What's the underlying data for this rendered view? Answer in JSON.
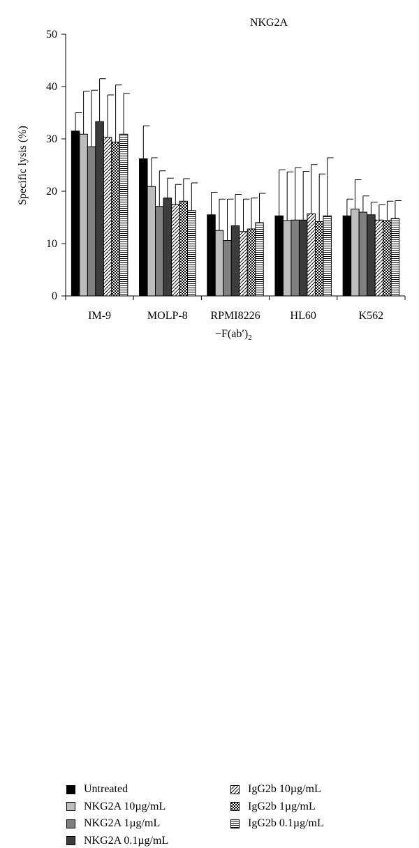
{
  "chart_data": {
    "type": "bar",
    "title": "NKG2A",
    "ylabel": "Specific lysis (%)",
    "xlabel": "",
    "ylim": [
      0,
      50
    ],
    "yticks": [
      "0",
      "10",
      "20",
      "30",
      "40",
      "50"
    ],
    "categories": [
      "IM-9",
      "MOLP-8",
      "RPMI8226",
      "HL60",
      "K562"
    ],
    "category_sublabel": "−F(ab′)",
    "category_sublabel_subscript": "2",
    "legend_position": "bottom",
    "series": [
      {
        "name": "Untreated",
        "pattern": "solid",
        "color": "#000000",
        "values": [
          31.5,
          26.2,
          15.5,
          15.3,
          15.3
        ],
        "errors": [
          3.5,
          6.3,
          4.3,
          8.8,
          3.2
        ]
      },
      {
        "name": "NKG2A 10µg/mL",
        "pattern": "solid",
        "color": "#bdbdbd",
        "values": [
          30.9,
          20.9,
          12.5,
          14.4,
          16.6
        ],
        "errors": [
          8.2,
          5.5,
          6.0,
          9.3,
          5.6
        ]
      },
      {
        "name": "NKG2A 1µg/mL",
        "pattern": "solid",
        "color": "#808080",
        "values": [
          28.5,
          17.1,
          10.6,
          14.5,
          16.0
        ],
        "errors": [
          10.8,
          6.8,
          7.9,
          10.0,
          3.1
        ]
      },
      {
        "name": "NKG2A 0.1µg/mL",
        "pattern": "solid",
        "color": "#3c3c3c",
        "values": [
          33.3,
          18.7,
          13.4,
          14.5,
          15.5
        ],
        "errors": [
          8.2,
          3.8,
          6.0,
          9.3,
          2.4
        ]
      },
      {
        "name": "IgG2b 10µg/mL",
        "pattern": "diagonal",
        "color": "#000000",
        "values": [
          30.3,
          17.5,
          12.3,
          15.7,
          14.5
        ],
        "errors": [
          8.1,
          3.8,
          6.2,
          9.4,
          2.9
        ]
      },
      {
        "name": "IgG2b 1µg/mL",
        "pattern": "checker",
        "color": "#000000",
        "values": [
          29.4,
          18.1,
          12.8,
          14.2,
          14.4
        ],
        "errors": [
          10.9,
          4.3,
          5.9,
          9.1,
          3.7
        ]
      },
      {
        "name": "IgG2b 0.1µg/mL",
        "pattern": "hlines",
        "color": "#000000",
        "values": [
          30.9,
          16.3,
          14.0,
          15.3,
          14.8
        ],
        "errors": [
          7.8,
          5.3,
          5.6,
          11.1,
          3.4
        ]
      }
    ]
  }
}
